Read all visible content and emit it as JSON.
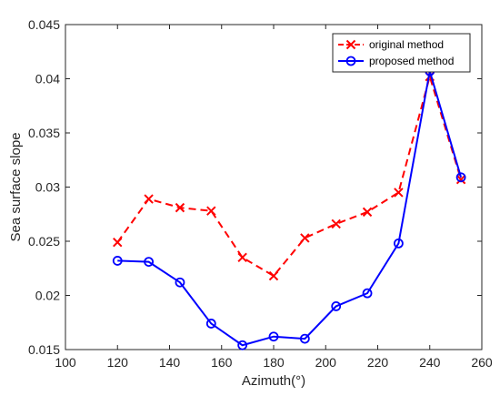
{
  "chart_data": {
    "type": "line",
    "title": "",
    "xlabel": "Azimuth(°)",
    "ylabel": "Sea surface slope",
    "xlim": [
      100,
      260
    ],
    "ylim": [
      0.015,
      0.045
    ],
    "xticks": [
      100,
      120,
      140,
      160,
      180,
      200,
      220,
      240,
      260
    ],
    "yticks": [
      0.015,
      0.02,
      0.025,
      0.03,
      0.035,
      0.04,
      0.045
    ],
    "xtick_labels": [
      "100",
      "120",
      "140",
      "160",
      "180",
      "200",
      "220",
      "240",
      "260"
    ],
    "ytick_labels": [
      "0.015",
      "0.02",
      "0.025",
      "0.03",
      "0.035",
      "0.04",
      "0.045"
    ],
    "grid": false,
    "legend_position": "top-right",
    "x": [
      120,
      132,
      144,
      156,
      168,
      180,
      192,
      204,
      216,
      228,
      240,
      252
    ],
    "series": [
      {
        "name": "original method",
        "color": "#ff0000",
        "line_style": "dashed",
        "marker": "x",
        "values": [
          0.0249,
          0.0289,
          0.0281,
          0.0278,
          0.0235,
          0.0218,
          0.0253,
          0.0266,
          0.0277,
          0.0295,
          0.0402,
          0.0307
        ]
      },
      {
        "name": "proposed method",
        "color": "#0000ff",
        "line_style": "solid",
        "marker": "circle",
        "values": [
          0.0232,
          0.0231,
          0.0212,
          0.0174,
          0.0154,
          0.0162,
          0.016,
          0.019,
          0.0202,
          0.0248,
          0.0407,
          0.0309
        ]
      }
    ]
  }
}
